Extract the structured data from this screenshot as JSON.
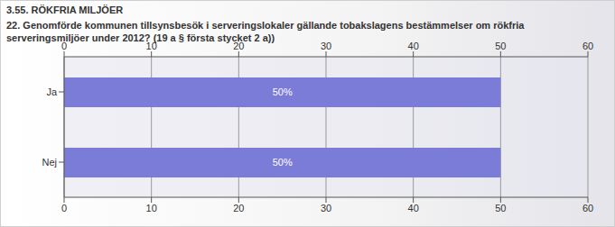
{
  "chart_data": {
    "type": "bar",
    "orientation": "horizontal",
    "title": "3.55. RÖKFRIA MILJÖER",
    "subtitle": "22. Genomförde kommunen tillsynsbesök i serveringslokaler gällande tobakslagens bestämmelser om rökfria serveringsmiljöer under 2012? (19 a § första stycket 2 a))",
    "categories": [
      "Ja",
      "Nej"
    ],
    "values": [
      50,
      50
    ],
    "value_labels": [
      "50%",
      "50%"
    ],
    "data_labels": true,
    "color": "#7b7bd8",
    "xlim": [
      0,
      60
    ],
    "xticks": [
      0,
      10,
      20,
      30,
      40,
      50,
      60
    ],
    "grid": true
  }
}
